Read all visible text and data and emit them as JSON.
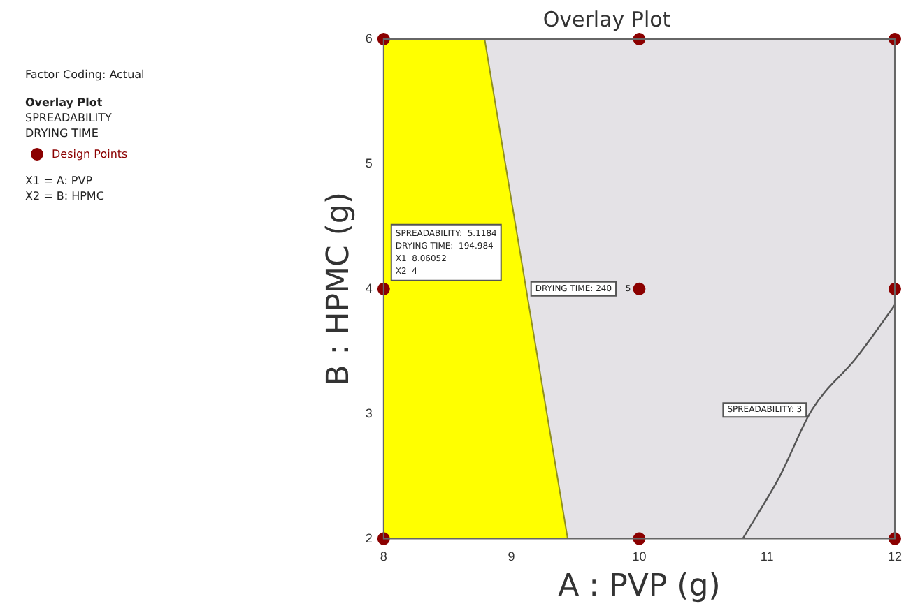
{
  "chart_data": {
    "type": "scatter",
    "title": "Overlay Plot",
    "xlabel": "A : PVP (g)",
    "ylabel": "B : HPMC (g)",
    "xlim": [
      8,
      12
    ],
    "ylim": [
      2,
      6
    ],
    "xticks": [
      8,
      9,
      10,
      11,
      12
    ],
    "yticks": [
      2,
      3,
      4,
      5,
      6
    ],
    "grid": false,
    "legend": "left",
    "bands": [
      {
        "axis": "x",
        "from": 8,
        "to": 12,
        "color": "#e4e2e6"
      }
    ],
    "series": [
      {
        "type": "area",
        "marker": "none",
        "color": "#ffff00",
        "x": [
          8,
          8.79,
          9.44
        ],
        "values": [
          6,
          6,
          2
        ]
      },
      {
        "type": "line",
        "marker": "none",
        "color": "#555555",
        "x": [
          10.81,
          11.1,
          11.35,
          11.7,
          12
        ],
        "values": [
          2,
          2.5,
          3.03,
          3.45,
          3.87
        ]
      },
      {
        "name": "Design Points",
        "color": "#8b0000",
        "x": [
          8,
          8,
          8,
          10,
          10,
          10,
          12,
          12,
          12
        ],
        "values": [
          2,
          4,
          6,
          2,
          4,
          6,
          2,
          4,
          6
        ],
        "marker": "circle"
      }
    ],
    "annotations": [
      "Factor Coding: Actual",
      "Overlay Plot",
      "SPREADABILITY",
      "DRYING TIME",
      "X1 = A: PVP",
      "X2 = B: HPMC",
      {
        "text": "SPREADABILITY:  5.1184\nDRYING TIME:  194.984\nX1  8.06052\nX2  4",
        "x": 8.06,
        "y": 4
      },
      {
        "text": "DRYING TIME: 240",
        "x": 9.11,
        "y": 4
      },
      {
        "text": "SPREADABILITY: 3",
        "x": 11.35,
        "y": 3.03
      },
      {
        "text": "5",
        "x": 10,
        "y": 4
      }
    ]
  }
}
